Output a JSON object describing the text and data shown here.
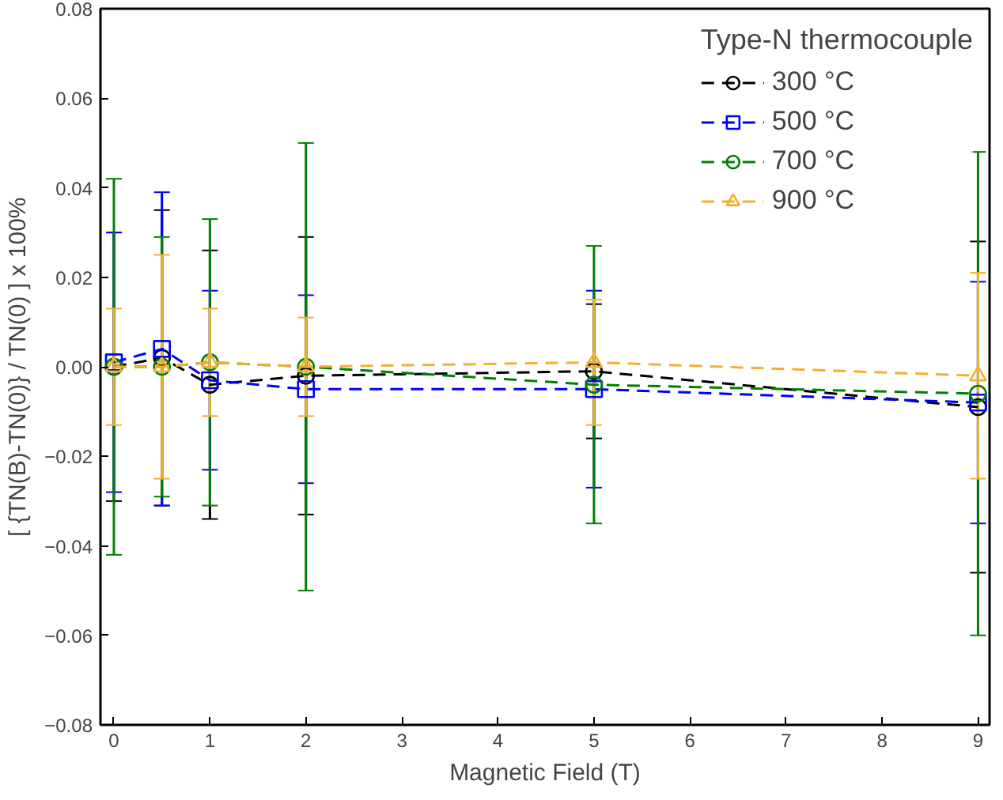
{
  "chart_data": {
    "type": "line",
    "xlabel": "Magnetic Field (T)",
    "ylabel": "[ {TN(B)-TN(0)} / TN(0) ] x 100%",
    "legend_title": "Type-N thermocouple",
    "legend": "top right",
    "line_style": "dashed",
    "grid": false,
    "x": [
      0,
      0.5,
      1,
      2,
      5,
      9
    ],
    "xlim": [
      -0.14,
      9.12
    ],
    "xticks": [
      0,
      1,
      2,
      3,
      4,
      5,
      6,
      7,
      8,
      9
    ],
    "ylim": [
      -0.08,
      0.08
    ],
    "yticks": [
      {
        "value": -0.08,
        "label": "−0.08"
      },
      {
        "value": -0.06,
        "label": "−0.06"
      },
      {
        "value": -0.04,
        "label": "−0.04"
      },
      {
        "value": -0.02,
        "label": "−0.02"
      },
      {
        "value": 0,
        "label": "0.00"
      },
      {
        "value": 0.02,
        "label": "0.02"
      },
      {
        "value": 0.04,
        "label": "0.04"
      },
      {
        "value": 0.06,
        "label": "0.06"
      },
      {
        "value": 0.08,
        "label": "0.08"
      }
    ],
    "series": [
      {
        "name": "300 °C",
        "color": "#000000",
        "marker": "circle",
        "values": [
          0.0,
          0.002,
          -0.004,
          -0.002,
          -0.001,
          -0.009
        ],
        "errors": [
          0.03,
          0.033,
          0.03,
          0.031,
          0.015,
          0.037
        ]
      },
      {
        "name": "500 °C",
        "color": "#0000ff",
        "marker": "square",
        "values": [
          0.001,
          0.004,
          -0.003,
          -0.005,
          -0.005,
          -0.008
        ],
        "errors": [
          0.029,
          0.035,
          0.02,
          0.021,
          0.022,
          0.027
        ]
      },
      {
        "name": "700 °C",
        "color": "#008000",
        "marker": "circle",
        "values": [
          0.0,
          0.0,
          0.001,
          0.0,
          -0.004,
          -0.006
        ],
        "errors": [
          0.042,
          0.029,
          0.032,
          0.05,
          0.031,
          0.054
        ]
      },
      {
        "name": "900 °C",
        "color": "#f0b030",
        "marker": "triangle",
        "values": [
          0.0,
          0.0,
          0.001,
          0.0,
          0.001,
          -0.002
        ],
        "errors": [
          0.013,
          0.025,
          0.012,
          0.011,
          0.014,
          0.023
        ]
      }
    ]
  }
}
